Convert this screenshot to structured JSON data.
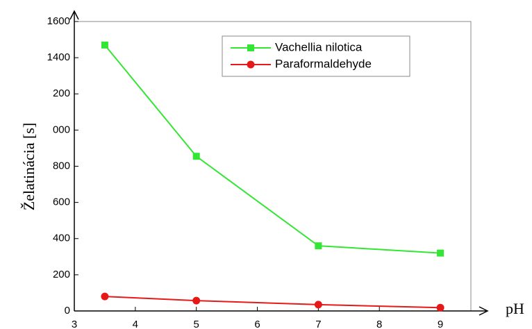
{
  "chart_data": {
    "type": "line",
    "xlabel": "pH",
    "ylabel": "Želatinácia [s]",
    "x": [
      3.5,
      5,
      7,
      9
    ],
    "series": [
      {
        "name": "Vachellia nilotica",
        "color": "#33e633",
        "marker": "square",
        "values": [
          1470,
          855,
          360,
          320
        ]
      },
      {
        "name": "Paraformaldehyde",
        "color": "#e61919",
        "marker": "circle",
        "values": [
          80,
          57,
          35,
          18
        ]
      }
    ],
    "xlim": [
      3,
      9.5
    ],
    "xticks": [
      3,
      4,
      5,
      6,
      7,
      8,
      9
    ],
    "ylim": [
      0,
      1600
    ],
    "yticks": [
      0,
      200,
      400,
      600,
      800,
      {
        "value": 1000,
        "label": "000"
      },
      {
        "value": 1200,
        "label": "200"
      },
      1400,
      1600
    ],
    "legend": "top-right"
  }
}
